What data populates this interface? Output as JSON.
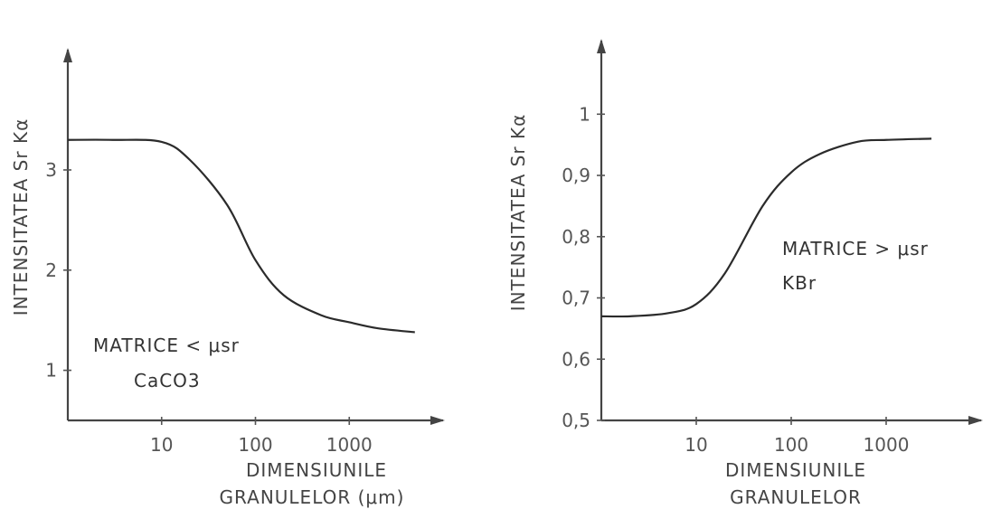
{
  "chart_data": [
    {
      "type": "line",
      "title": "",
      "ylabel": "INTENSITATEA Sr Kα",
      "xlabel_line1": "DIMENSIUNILE",
      "xlabel_line2": "GRANULELOR (μm)",
      "x_scale": "log",
      "x_ticks": [
        "10",
        "100",
        "1000"
      ],
      "y_ticks": [
        "1",
        "2",
        "3"
      ],
      "xlim": [
        1,
        10000
      ],
      "ylim": [
        0.5,
        4.2
      ],
      "annotation_line1": "MATRICE < μsr",
      "annotation_line2": "CaCO3",
      "series": [
        {
          "x": [
            1,
            3,
            10,
            20,
            50,
            100,
            200,
            500,
            1000,
            2000,
            5000
          ],
          "y": [
            3.3,
            3.3,
            3.28,
            3.1,
            2.65,
            2.1,
            1.75,
            1.55,
            1.48,
            1.42,
            1.38
          ]
        }
      ]
    },
    {
      "type": "line",
      "title": "",
      "ylabel": "INTENSITATEA Sr Kα",
      "xlabel_line1": "DIMENSIUNILE",
      "xlabel_line2": "GRANULELOR",
      "x_scale": "log",
      "x_ticks": [
        "10",
        "100",
        "1000"
      ],
      "y_ticks": [
        "0,5",
        "0,6",
        "0,7",
        "0,8",
        "0,9",
        "1"
      ],
      "xlim": [
        1,
        10000
      ],
      "ylim": [
        0.5,
        1.12
      ],
      "annotation_line1": "MATRICE > μsr",
      "annotation_line2": "KBr",
      "series": [
        {
          "x": [
            1,
            2,
            5,
            10,
            20,
            50,
            100,
            200,
            500,
            1000,
            3000
          ],
          "y": [
            0.67,
            0.67,
            0.675,
            0.69,
            0.74,
            0.85,
            0.905,
            0.935,
            0.955,
            0.958,
            0.96
          ]
        }
      ]
    }
  ]
}
